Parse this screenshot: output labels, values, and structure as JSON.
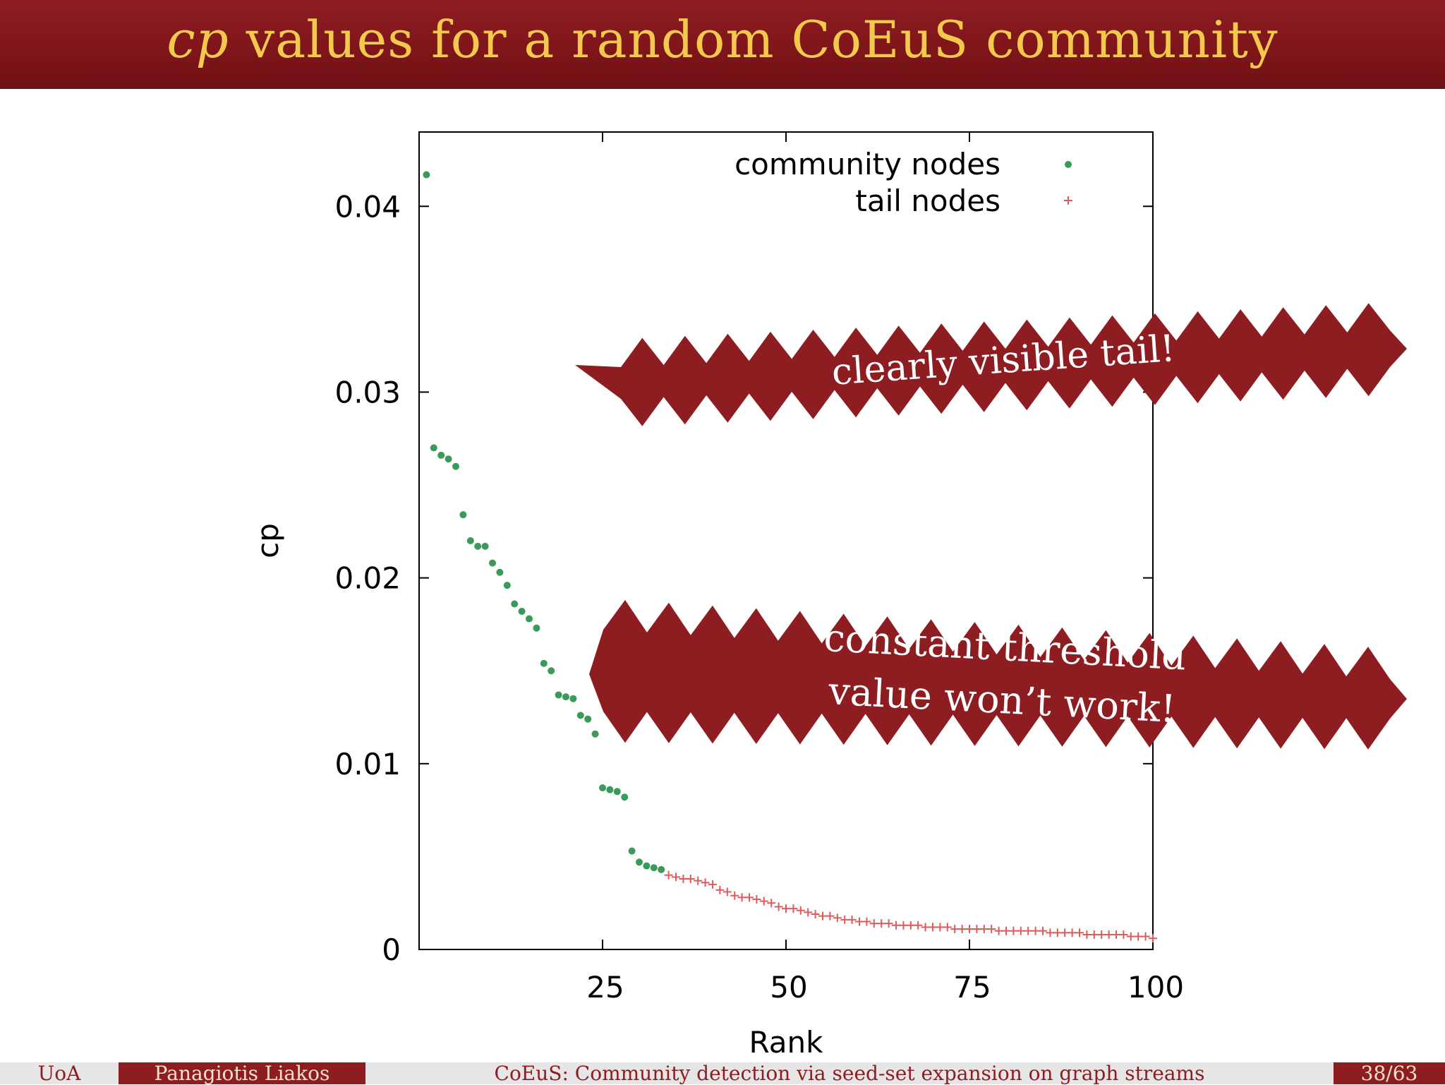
{
  "slide": {
    "title_italic": "cp",
    "title_rest": " values for a random CoEuS community"
  },
  "callouts": [
    {
      "lines": [
        "clearly visible tail!"
      ]
    },
    {
      "lines": [
        "constant threshold",
        "value won’t work!"
      ]
    }
  ],
  "footer": {
    "institution": "UoA",
    "author": "Panagiotis Liakos",
    "talk_title": "CoEuS: Community detection via seed-set expansion on graph streams",
    "page": "38/63"
  },
  "colors": {
    "title_bg": "#8e1d22",
    "title_text": "#f2c94c",
    "callout_fill": "#8e1d22",
    "community": "#3a9a5a",
    "tail": "#e05a5a"
  },
  "chart_data": {
    "type": "scatter",
    "title": "",
    "xlabel": "Rank",
    "ylabel": "cp",
    "xlim": [
      0,
      100
    ],
    "ylim": [
      0,
      0.044
    ],
    "xticks": [
      25,
      50,
      75,
      100
    ],
    "yticks": [
      0,
      0.01,
      0.02,
      0.03,
      0.04
    ],
    "ytick_labels": [
      "0",
      "0.01",
      "0.02",
      "0.03",
      "0.04"
    ],
    "grid": false,
    "legend_position": "top-right",
    "series": [
      {
        "name": "community nodes",
        "marker": "dot",
        "x": [
          1,
          2,
          3,
          4,
          5,
          6,
          7,
          8,
          9,
          10,
          11,
          12,
          13,
          14,
          15,
          16,
          17,
          18,
          19,
          20,
          21,
          22,
          23,
          24,
          25,
          26,
          27,
          28,
          29,
          30,
          31,
          32,
          33
        ],
        "y": [
          0.0417,
          0.027,
          0.0266,
          0.0264,
          0.026,
          0.0234,
          0.022,
          0.0217,
          0.0217,
          0.0208,
          0.0203,
          0.0196,
          0.0186,
          0.0182,
          0.0178,
          0.0173,
          0.0154,
          0.015,
          0.0137,
          0.0136,
          0.0135,
          0.0126,
          0.0124,
          0.0116,
          0.0087,
          0.0086,
          0.0085,
          0.0082,
          0.0053,
          0.0047,
          0.0045,
          0.0044,
          0.0043
        ]
      },
      {
        "name": "tail nodes",
        "marker": "plus",
        "x": [
          34,
          35,
          36,
          37,
          38,
          39,
          40,
          41,
          42,
          43,
          44,
          45,
          46,
          47,
          48,
          49,
          50,
          51,
          52,
          53,
          54,
          55,
          56,
          57,
          58,
          59,
          60,
          61,
          62,
          63,
          64,
          65,
          66,
          67,
          68,
          69,
          70,
          71,
          72,
          73,
          74,
          75,
          76,
          77,
          78,
          79,
          80,
          81,
          82,
          83,
          84,
          85,
          86,
          87,
          88,
          89,
          90,
          91,
          92,
          93,
          94,
          95,
          96,
          97,
          98,
          99,
          100
        ],
        "y": [
          0.004,
          0.0039,
          0.0038,
          0.0038,
          0.0037,
          0.0036,
          0.0035,
          0.0032,
          0.0031,
          0.0029,
          0.0028,
          0.0028,
          0.0027,
          0.0026,
          0.0025,
          0.0023,
          0.0022,
          0.0022,
          0.0021,
          0.002,
          0.0019,
          0.0018,
          0.0018,
          0.0017,
          0.0016,
          0.0016,
          0.0015,
          0.0015,
          0.0014,
          0.0014,
          0.0014,
          0.0013,
          0.0013,
          0.0013,
          0.0013,
          0.0012,
          0.0012,
          0.0012,
          0.0012,
          0.0011,
          0.0011,
          0.0011,
          0.0011,
          0.0011,
          0.0011,
          0.001,
          0.001,
          0.001,
          0.001,
          0.001,
          0.001,
          0.001,
          0.0009,
          0.0009,
          0.0009,
          0.0009,
          0.0009,
          0.0008,
          0.0008,
          0.0008,
          0.0008,
          0.0008,
          0.0008,
          0.0007,
          0.0007,
          0.0007,
          0.0006
        ]
      }
    ]
  }
}
